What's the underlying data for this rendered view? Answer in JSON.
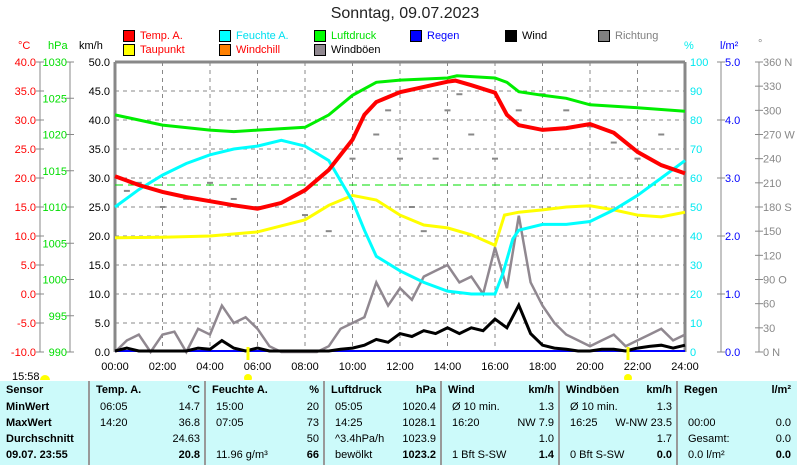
{
  "title": "Sonntag, 09.07.2023",
  "legend": [
    {
      "label": "Temp. A.",
      "color": "#ff0000",
      "text": "#ff0000"
    },
    {
      "label": "Taupunkt",
      "color": "#ffff00",
      "text": "#ff0000"
    },
    {
      "label": "Feuchte A.",
      "color": "#00ffff",
      "text": "#00e0f0"
    },
    {
      "label": "Windchill",
      "color": "#ff8000",
      "text": "#ff0000"
    },
    {
      "label": "Luftdruck",
      "color": "#00ff00",
      "text": "#00e000"
    },
    {
      "label": "Windböen",
      "color": "#908890",
      "text": "#000000"
    },
    {
      "label": "Regen",
      "color": "#0000ff",
      "text": "#0000ff"
    },
    {
      "label": "Wind",
      "color": "#000000",
      "text": "#000000"
    },
    {
      "label": "Richtung",
      "color": "#808080",
      "text": "#808080"
    }
  ],
  "axes": {
    "temp_unit": "°C",
    "press_unit": "hPa",
    "wind_unit": "km/h",
    "hum_unit": "%",
    "rain_unit": "l/m²",
    "dir_unit": "°",
    "temp_ticks": [
      "40.0",
      "35.0",
      "30.0",
      "25.0",
      "20.0",
      "15.0",
      "10.0",
      "5.0",
      "0.0",
      "-5.0",
      "-10.0"
    ],
    "press_ticks": [
      "1030",
      "1025",
      "1020",
      "1015",
      "1010",
      "1005",
      "1000",
      "995",
      "990"
    ],
    "wind_ticks": [
      "50.0",
      "45.0",
      "40.0",
      "35.0",
      "30.0",
      "25.0",
      "20.0",
      "15.0",
      "10.0",
      "5.0",
      "0.0"
    ],
    "hum_ticks": [
      "100",
      "90",
      "80",
      "70",
      "60",
      "50",
      "40",
      "30",
      "20",
      "10",
      "0"
    ],
    "rain_ticks": [
      "5.0",
      "4.0",
      "3.0",
      "2.0",
      "1.0",
      "0.0"
    ],
    "dir_ticks": [
      "360 N",
      "330",
      "300",
      "270 W",
      "240",
      "210",
      "180 S",
      "150",
      "120",
      "90  O",
      "60",
      "30",
      "0   N"
    ],
    "x_ticks": [
      "00:00",
      "02:00",
      "04:00",
      "06:00",
      "08:00",
      "10:00",
      "12:00",
      "14:00",
      "16:00",
      "18:00",
      "20:00",
      "22:00",
      "24:00"
    ]
  },
  "sun": {
    "sunset_time": "15:58"
  },
  "chart_data": {
    "type": "line",
    "x_range_hours": [
      0,
      24
    ],
    "temp_range": [
      -10,
      40
    ],
    "press_range": [
      990,
      1030
    ],
    "hum_range": [
      0,
      100
    ],
    "wind_range": [
      0,
      50
    ],
    "temp": [
      [
        0,
        20.3
      ],
      [
        1,
        18.8
      ],
      [
        2,
        17.6
      ],
      [
        3,
        16.7
      ],
      [
        4,
        16
      ],
      [
        5,
        15.3
      ],
      [
        6,
        14.7
      ],
      [
        7,
        15.7
      ],
      [
        8,
        17.9
      ],
      [
        9,
        21.4
      ],
      [
        10,
        26.6
      ],
      [
        10.5,
        30.9
      ],
      [
        11,
        33.1
      ],
      [
        12,
        34.8
      ],
      [
        13,
        35.7
      ],
      [
        14,
        36.6
      ],
      [
        14.33,
        36.8
      ],
      [
        15,
        36
      ],
      [
        16,
        34.7
      ],
      [
        16.5,
        30.9
      ],
      [
        17,
        29.1
      ],
      [
        18,
        28.3
      ],
      [
        19,
        28.6
      ],
      [
        20,
        29.3
      ],
      [
        21,
        27.8
      ],
      [
        22,
        24.5
      ],
      [
        23,
        22.2
      ],
      [
        24,
        20.8
      ]
    ],
    "dewpoint": [
      [
        0,
        9.7
      ],
      [
        2,
        9.8
      ],
      [
        4,
        10
      ],
      [
        6,
        10.7
      ],
      [
        8,
        12.8
      ],
      [
        9,
        15.3
      ],
      [
        10,
        17
      ],
      [
        11,
        16.2
      ],
      [
        12,
        13.6
      ],
      [
        13,
        11.9
      ],
      [
        14,
        11.4
      ],
      [
        15,
        10.2
      ],
      [
        16,
        8.4
      ],
      [
        16.4,
        13.6
      ],
      [
        17,
        14.1
      ],
      [
        18,
        14.5
      ],
      [
        19,
        15
      ],
      [
        20,
        15.2
      ],
      [
        21,
        14.5
      ],
      [
        22,
        13.6
      ],
      [
        23,
        13.3
      ],
      [
        24,
        14.1
      ]
    ],
    "humidity": [
      [
        0,
        50
      ],
      [
        1,
        56
      ],
      [
        2,
        61
      ],
      [
        3,
        65
      ],
      [
        4,
        68
      ],
      [
        5,
        70
      ],
      [
        6,
        71
      ],
      [
        7,
        73
      ],
      [
        8,
        71
      ],
      [
        9,
        66
      ],
      [
        10,
        52
      ],
      [
        10.5,
        42
      ],
      [
        11,
        33
      ],
      [
        12,
        28
      ],
      [
        13,
        24
      ],
      [
        14,
        21
      ],
      [
        15,
        20
      ],
      [
        16,
        20
      ],
      [
        16.33,
        27
      ],
      [
        16.75,
        39
      ],
      [
        17,
        42
      ],
      [
        18,
        44
      ],
      [
        19,
        44
      ],
      [
        20,
        45
      ],
      [
        21,
        49
      ],
      [
        22,
        54
      ],
      [
        23,
        60
      ],
      [
        24,
        66
      ]
    ],
    "pressure": [
      [
        0,
        1022.7
      ],
      [
        1,
        1022
      ],
      [
        2,
        1021.3
      ],
      [
        4,
        1020.6
      ],
      [
        5,
        1020.4
      ],
      [
        6,
        1020.6
      ],
      [
        8,
        1021
      ],
      [
        9,
        1022.7
      ],
      [
        10,
        1025.4
      ],
      [
        11,
        1027.2
      ],
      [
        12,
        1027.5
      ],
      [
        14,
        1027.8
      ],
      [
        14.4,
        1028.1
      ],
      [
        16,
        1027.8
      ],
      [
        16.5,
        1027.2
      ],
      [
        17,
        1025.9
      ],
      [
        18,
        1025.4
      ],
      [
        19,
        1025
      ],
      [
        20,
        1024.1
      ],
      [
        22,
        1023.7
      ],
      [
        24,
        1023.2
      ]
    ],
    "wind": [
      0,
      0.5,
      0,
      0,
      0,
      0,
      0,
      0.5,
      0.3,
      1.8,
      0.5,
      0,
      0.5,
      0,
      0,
      0,
      0,
      0,
      0,
      0.3,
      0.5,
      1,
      2,
      1.5,
      3,
      2.5,
      3.5,
      3,
      4,
      3,
      4,
      3.5,
      5.5,
      4,
      7.9,
      3,
      1,
      0.5,
      0.3,
      0,
      0,
      0.3,
      0.3,
      0,
      0.5,
      0.8,
      1,
      0.5,
      1
    ],
    "gusts": [
      0,
      2,
      3,
      0,
      3,
      3.5,
      0,
      4,
      3,
      8,
      5,
      6,
      4,
      1,
      0,
      0,
      0,
      0,
      1,
      4,
      5,
      6,
      12,
      8,
      11,
      9,
      13,
      14,
      15,
      12,
      13,
      10,
      18,
      11,
      23.5,
      12,
      8,
      5,
      3,
      2,
      1,
      2,
      3,
      1,
      2,
      3,
      4,
      2,
      3
    ],
    "rain": 0.0,
    "direction": [
      [
        0.5,
        200
      ],
      [
        1,
        210
      ],
      [
        2,
        180
      ],
      [
        3,
        190
      ],
      [
        4,
        210
      ],
      [
        5,
        190
      ],
      [
        6,
        180
      ],
      [
        8,
        170
      ],
      [
        9,
        150
      ],
      [
        10,
        240
      ],
      [
        11,
        270
      ],
      [
        11.5,
        300
      ],
      [
        12,
        240
      ],
      [
        12.5,
        180
      ],
      [
        13,
        150
      ],
      [
        13.5,
        240
      ],
      [
        14,
        300
      ],
      [
        14.5,
        320
      ],
      [
        15,
        270
      ],
      [
        16,
        240
      ],
      [
        17,
        300
      ],
      [
        18,
        320
      ],
      [
        19,
        300
      ],
      [
        20,
        280
      ],
      [
        21,
        260
      ],
      [
        22,
        240
      ],
      [
        23,
        270
      ]
    ]
  },
  "table": {
    "columns": [
      {
        "name": "Sensor",
        "unit": ""
      },
      {
        "name": "Temp. A.",
        "unit": "°C"
      },
      {
        "name": "Feuchte A.",
        "unit": "%"
      },
      {
        "name": "Luftdruck",
        "unit": "hPa"
      },
      {
        "name": "Wind",
        "unit": "km/h"
      },
      {
        "name": "Windböen",
        "unit": "km/h"
      },
      {
        "name": "Regen",
        "unit": "l/m²"
      }
    ],
    "row_labels": [
      "MinWert",
      "MaxWert",
      "Durchschnitt",
      "09.07. 23:55"
    ],
    "cells": [
      [
        [
          "06:05",
          "14.7"
        ],
        [
          "15:00",
          "20"
        ],
        [
          "05:05",
          "1020.4"
        ],
        [
          "Ø 10 min.",
          "1.3"
        ],
        [
          "Ø 10 min.",
          "1.3"
        ],
        [
          "",
          ""
        ]
      ],
      [
        [
          "14:20",
          "36.8"
        ],
        [
          "07:05",
          "73"
        ],
        [
          "14:25",
          "1028.1"
        ],
        [
          "16:20",
          "NW 7.9"
        ],
        [
          "16:25",
          "W-NW 23.5"
        ],
        [
          "00:00",
          "0.0"
        ]
      ],
      [
        [
          "",
          "24.63"
        ],
        [
          "",
          "50"
        ],
        [
          "^3.4hPa/h",
          "1023.9"
        ],
        [
          "",
          "1.0"
        ],
        [
          "",
          "1.7"
        ],
        [
          "Gesamt:",
          "0.0"
        ]
      ],
      [
        [
          "",
          "20.8"
        ],
        [
          "11.96 g/m³",
          "66"
        ],
        [
          "bewölkt",
          "1023.2"
        ],
        [
          "1 Bft S-SW",
          "1.4"
        ],
        [
          "0 Bft S-SW",
          "0.0"
        ],
        [
          "0.0 l/m²",
          "0.0"
        ]
      ]
    ]
  }
}
